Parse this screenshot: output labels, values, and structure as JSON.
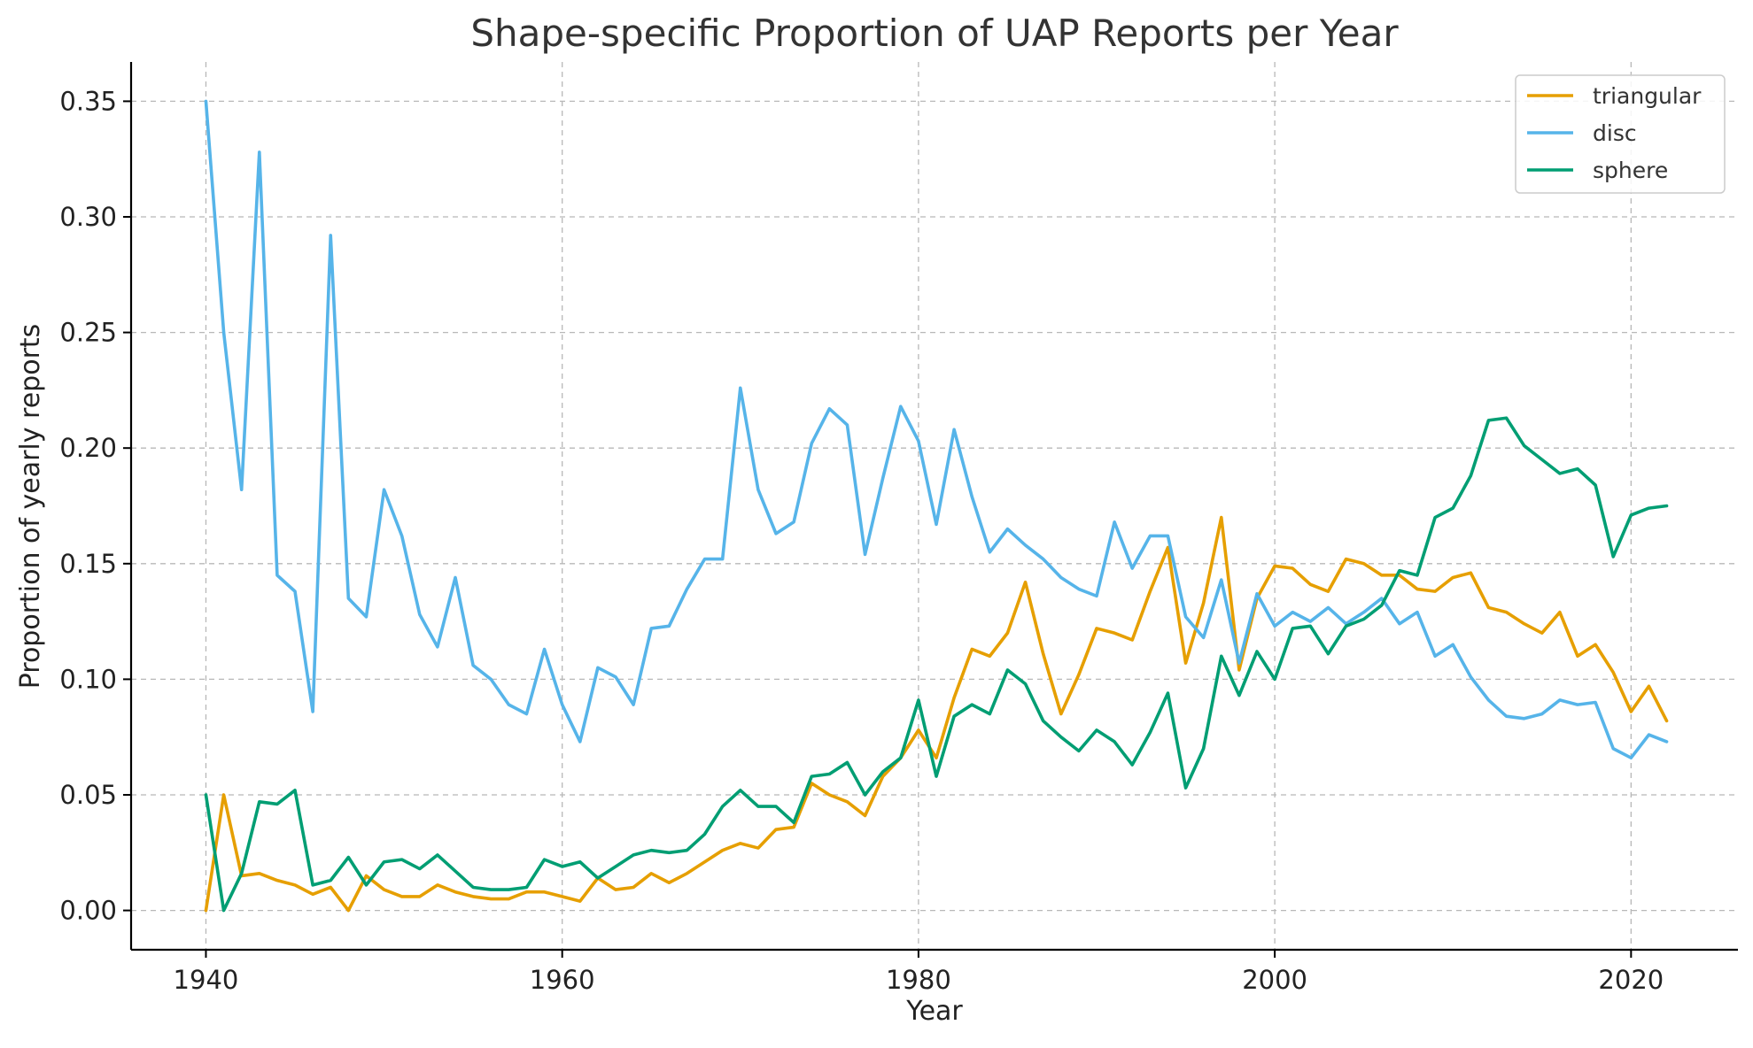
{
  "chart_data": {
    "type": "line",
    "title": "Shape-specific Proportion of UAP Reports per Year",
    "xlabel": "Year",
    "ylabel": "Proportion of yearly reports",
    "xlim": [
      1935.8,
      2026
    ],
    "ylim": [
      -0.017,
      0.367
    ],
    "x_ticks": [
      1940,
      1960,
      1980,
      2000,
      2020
    ],
    "x_tick_labels": [
      "1940",
      "1960",
      "1980",
      "2000",
      "2020"
    ],
    "y_ticks": [
      0.0,
      0.05,
      0.1,
      0.15,
      0.2,
      0.25,
      0.3,
      0.35
    ],
    "y_tick_labels": [
      "0.00",
      "0.05",
      "0.10",
      "0.15",
      "0.20",
      "0.25",
      "0.30",
      "0.35"
    ],
    "grid": true,
    "legend_position": "top-right",
    "x": [
      1940,
      1941,
      1942,
      1943,
      1944,
      1945,
      1946,
      1947,
      1948,
      1949,
      1950,
      1951,
      1952,
      1953,
      1954,
      1955,
      1956,
      1957,
      1958,
      1959,
      1960,
      1961,
      1962,
      1963,
      1964,
      1965,
      1966,
      1967,
      1968,
      1969,
      1970,
      1971,
      1972,
      1973,
      1974,
      1975,
      1976,
      1977,
      1978,
      1979,
      1980,
      1981,
      1982,
      1983,
      1984,
      1985,
      1986,
      1987,
      1988,
      1989,
      1990,
      1991,
      1992,
      1993,
      1994,
      1995,
      1996,
      1997,
      1998,
      1999,
      2000,
      2001,
      2002,
      2003,
      2004,
      2005,
      2006,
      2007,
      2008,
      2009,
      2010,
      2011,
      2012,
      2013,
      2014,
      2015,
      2016,
      2017,
      2018,
      2019,
      2020,
      2021,
      2022
    ],
    "series": [
      {
        "name": "triangular",
        "color": "#E69F00",
        "values": [
          0.0,
          0.05,
          0.015,
          0.016,
          0.013,
          0.011,
          0.007,
          0.01,
          0.0,
          0.015,
          0.009,
          0.006,
          0.006,
          0.011,
          0.008,
          0.006,
          0.005,
          0.005,
          0.008,
          0.008,
          0.006,
          0.004,
          0.014,
          0.009,
          0.01,
          0.016,
          0.012,
          0.016,
          0.021,
          0.026,
          0.029,
          0.027,
          0.035,
          0.036,
          0.055,
          0.05,
          0.047,
          0.041,
          0.058,
          0.066,
          0.078,
          0.066,
          0.092,
          0.113,
          0.11,
          0.12,
          0.142,
          0.111,
          0.085,
          0.102,
          0.122,
          0.12,
          0.117,
          0.138,
          0.157,
          0.107,
          0.133,
          0.17,
          0.104,
          0.135,
          0.149,
          0.148,
          0.141,
          0.138,
          0.152,
          0.15,
          0.145,
          0.145,
          0.139,
          0.138,
          0.144,
          0.146,
          0.131,
          0.129,
          0.124,
          0.12,
          0.129,
          0.11,
          0.115,
          0.103,
          0.086,
          0.097,
          0.082
        ]
      },
      {
        "name": "disc",
        "color": "#56B4E9",
        "values": [
          0.35,
          0.25,
          0.182,
          0.328,
          0.145,
          0.138,
          0.086,
          0.292,
          0.135,
          0.127,
          0.182,
          0.162,
          0.128,
          0.114,
          0.144,
          0.106,
          0.1,
          0.089,
          0.085,
          0.113,
          0.089,
          0.073,
          0.105,
          0.101,
          0.089,
          0.122,
          0.123,
          0.139,
          0.152,
          0.152,
          0.226,
          0.182,
          0.163,
          0.168,
          0.202,
          0.217,
          0.21,
          0.154,
          0.187,
          0.218,
          0.203,
          0.167,
          0.208,
          0.179,
          0.155,
          0.165,
          0.158,
          0.152,
          0.144,
          0.139,
          0.136,
          0.168,
          0.148,
          0.162,
          0.162,
          0.127,
          0.118,
          0.143,
          0.107,
          0.137,
          0.123,
          0.129,
          0.125,
          0.131,
          0.124,
          0.129,
          0.135,
          0.124,
          0.129,
          0.11,
          0.115,
          0.101,
          0.091,
          0.084,
          0.083,
          0.085,
          0.091,
          0.089,
          0.09,
          0.07,
          0.066,
          0.076,
          0.073
        ]
      },
      {
        "name": "sphere",
        "color": "#009E73",
        "values": [
          0.05,
          0.0,
          0.016,
          0.047,
          0.046,
          0.052,
          0.011,
          0.013,
          0.023,
          0.011,
          0.021,
          0.022,
          0.018,
          0.024,
          0.017,
          0.01,
          0.009,
          0.009,
          0.01,
          0.022,
          0.019,
          0.021,
          0.014,
          0.019,
          0.024,
          0.026,
          0.025,
          0.026,
          0.033,
          0.045,
          0.052,
          0.045,
          0.045,
          0.038,
          0.058,
          0.059,
          0.064,
          0.05,
          0.06,
          0.066,
          0.091,
          0.058,
          0.084,
          0.089,
          0.085,
          0.104,
          0.098,
          0.082,
          0.075,
          0.069,
          0.078,
          0.073,
          0.063,
          0.077,
          0.094,
          0.053,
          0.07,
          0.11,
          0.093,
          0.112,
          0.1,
          0.122,
          0.123,
          0.111,
          0.123,
          0.126,
          0.132,
          0.147,
          0.145,
          0.17,
          0.174,
          0.188,
          0.212,
          0.213,
          0.201,
          0.195,
          0.189,
          0.191,
          0.184,
          0.153,
          0.171,
          0.174,
          0.175
        ]
      }
    ]
  }
}
